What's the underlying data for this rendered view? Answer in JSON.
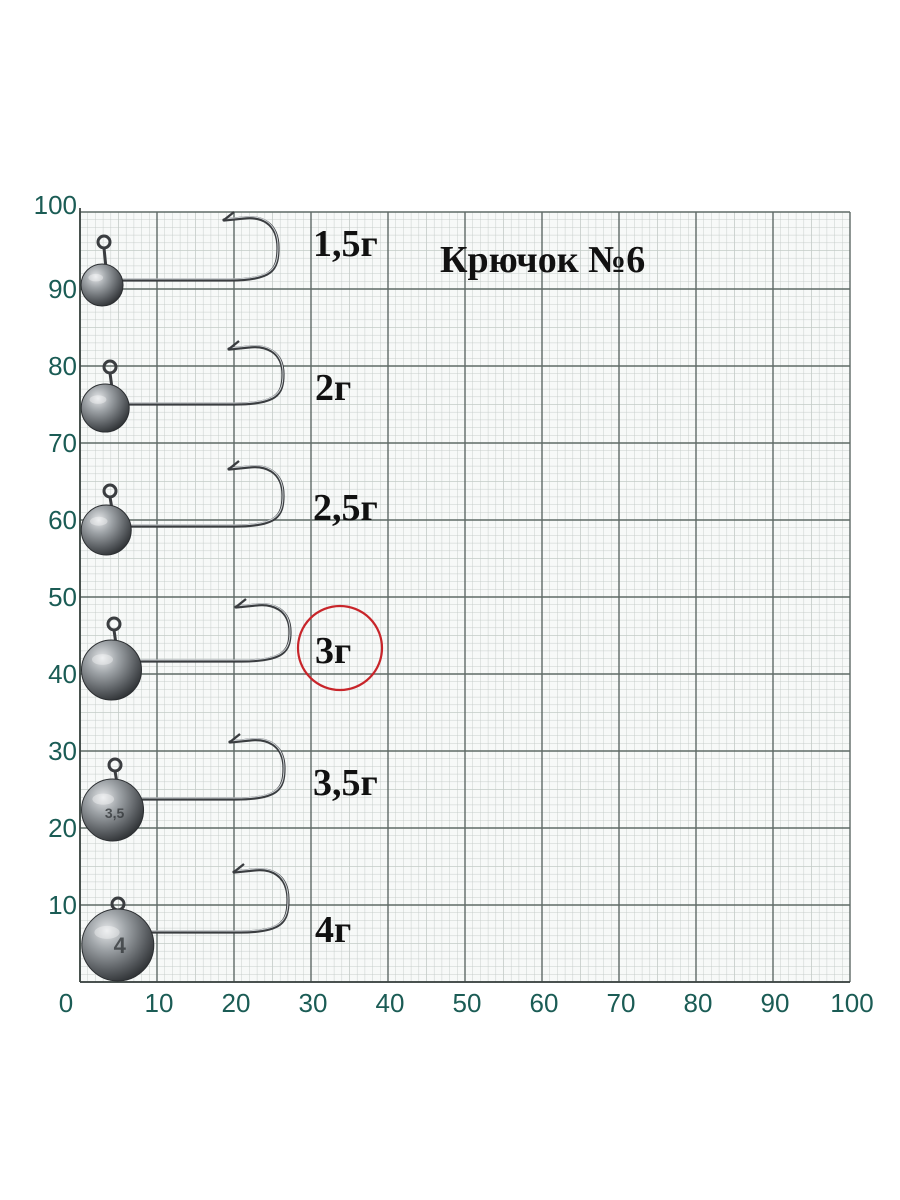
{
  "title": "Крючок №6",
  "colors": {
    "paper": "#f7f9f8",
    "grid_minor": "#c3cbc7",
    "grid_major": "#5f6a66",
    "axis_text": "#1b5c55",
    "highlight_circle": "#c8252a",
    "lead": "#6f7377",
    "wire": "#3a3d40"
  },
  "axes": {
    "x_ticks": [
      "0",
      "10",
      "20",
      "30",
      "40",
      "50",
      "60",
      "70",
      "80",
      "90",
      "100"
    ],
    "y_ticks": [
      "10",
      "20",
      "30",
      "40",
      "50",
      "60",
      "70",
      "80",
      "90",
      "100"
    ]
  },
  "jigs": [
    {
      "label": "1,5г",
      "head_mark": ""
    },
    {
      "label": "2г",
      "head_mark": ""
    },
    {
      "label": "2,5г",
      "head_mark": ""
    },
    {
      "label": "3г",
      "head_mark": "",
      "highlighted": true
    },
    {
      "label": "3,5г",
      "head_mark": "3,5"
    },
    {
      "label": "4г",
      "head_mark": "4"
    }
  ]
}
